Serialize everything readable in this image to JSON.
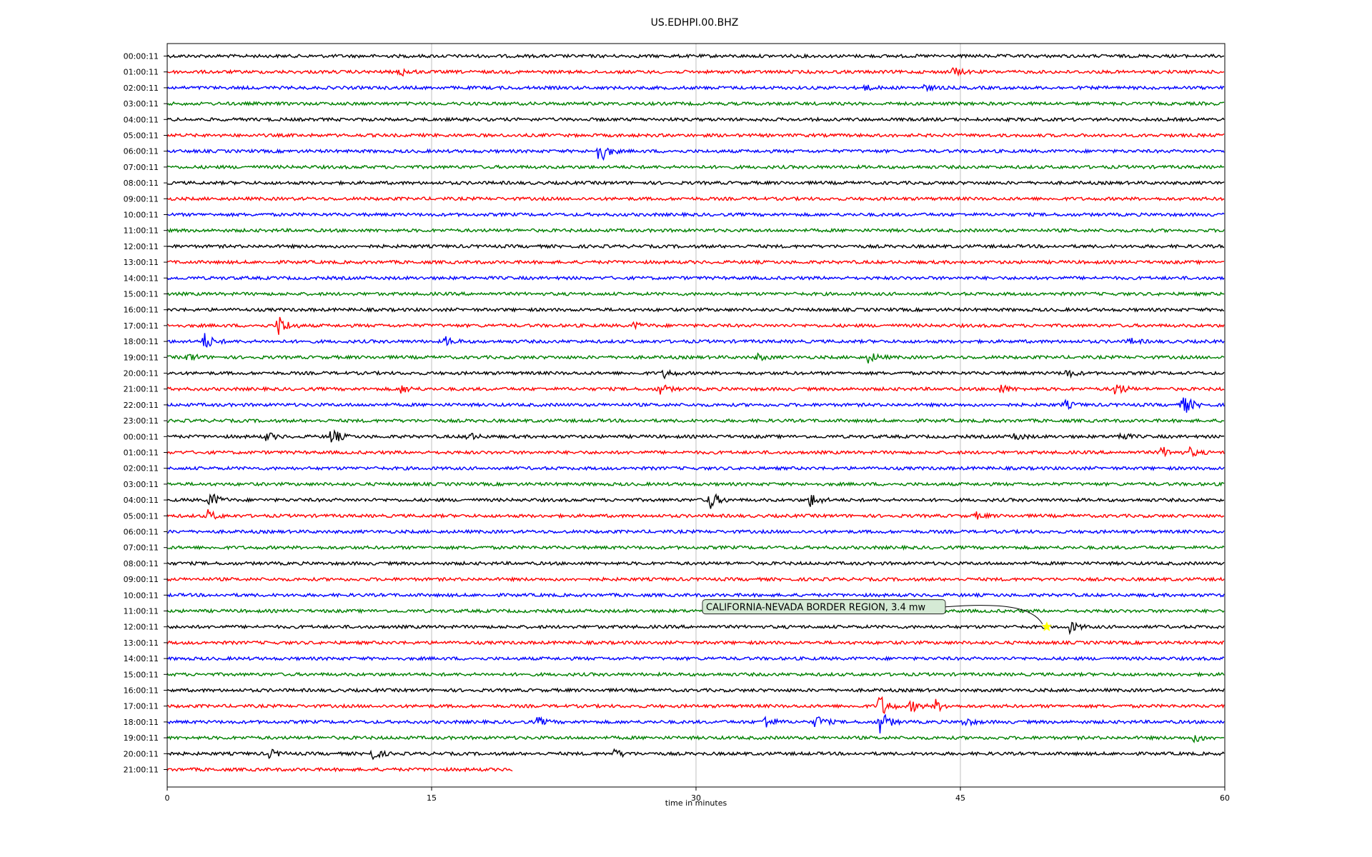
{
  "chart_data": {
    "type": "line",
    "title": "US.EDHPI.00.BHZ",
    "xlabel": "time in minutes",
    "ylabel": "",
    "xlim": [
      0,
      60
    ],
    "xticks": [
      0,
      15,
      30,
      45,
      60
    ],
    "xtick_labels": [
      "0",
      "15",
      "30",
      "45",
      "60"
    ],
    "grid": "vertical",
    "trace_colors": [
      "#000000",
      "#ff0000",
      "#0000ff",
      "#008000"
    ],
    "row_labels": [
      "00:00:11",
      "01:00:11",
      "02:00:11",
      "03:00:11",
      "04:00:11",
      "05:00:11",
      "06:00:11",
      "07:00:11",
      "08:00:11",
      "09:00:11",
      "10:00:11",
      "11:00:11",
      "12:00:11",
      "13:00:11",
      "14:00:11",
      "15:00:11",
      "16:00:11",
      "17:00:11",
      "18:00:11",
      "19:00:11",
      "20:00:11",
      "21:00:11",
      "22:00:11",
      "23:00:11",
      "00:00:11",
      "01:00:11",
      "02:00:11",
      "03:00:11",
      "04:00:11",
      "05:00:11",
      "06:00:11",
      "07:00:11",
      "08:00:11",
      "09:00:11",
      "10:00:11",
      "11:00:11",
      "12:00:11",
      "13:00:11",
      "14:00:11",
      "15:00:11",
      "16:00:11",
      "17:00:11",
      "18:00:11",
      "19:00:11",
      "20:00:11",
      "21:00:11"
    ],
    "last_row_end_minute": 19.6,
    "events": [
      {
        "row": 1,
        "minute": 13.2,
        "amp": 0.3
      },
      {
        "row": 1,
        "minute": 44.6,
        "amp": 0.3
      },
      {
        "row": 2,
        "minute": 39.5,
        "amp": 0.2
      },
      {
        "row": 2,
        "minute": 43.0,
        "amp": 0.2
      },
      {
        "row": 6,
        "minute": 24.5,
        "amp": 0.9
      },
      {
        "row": 17,
        "minute": 6.3,
        "amp": 0.8
      },
      {
        "row": 17,
        "minute": 26.5,
        "amp": 0.2
      },
      {
        "row": 18,
        "minute": 2.1,
        "amp": 0.6
      },
      {
        "row": 18,
        "minute": 15.8,
        "amp": 0.3
      },
      {
        "row": 18,
        "minute": 54.6,
        "amp": 0.2
      },
      {
        "row": 19,
        "minute": 1.2,
        "amp": 0.3
      },
      {
        "row": 19,
        "minute": 33.5,
        "amp": 0.2
      },
      {
        "row": 19,
        "minute": 39.8,
        "amp": 0.4
      },
      {
        "row": 20,
        "minute": 28.2,
        "amp": 0.3
      },
      {
        "row": 20,
        "minute": 51.0,
        "amp": 0.3
      },
      {
        "row": 21,
        "minute": 13.3,
        "amp": 0.3
      },
      {
        "row": 21,
        "minute": 27.9,
        "amp": 0.4
      },
      {
        "row": 21,
        "minute": 47.3,
        "amp": 0.3
      },
      {
        "row": 21,
        "minute": 53.8,
        "amp": 0.5
      },
      {
        "row": 22,
        "minute": 50.9,
        "amp": 0.3
      },
      {
        "row": 22,
        "minute": 57.6,
        "amp": 0.8
      },
      {
        "row": 24,
        "minute": 5.6,
        "amp": 0.3
      },
      {
        "row": 24,
        "minute": 9.3,
        "amp": 0.6
      },
      {
        "row": 24,
        "minute": 17.0,
        "amp": 0.3
      },
      {
        "row": 24,
        "minute": 48.0,
        "amp": 0.3
      },
      {
        "row": 24,
        "minute": 54.0,
        "amp": 0.3
      },
      {
        "row": 25,
        "minute": 56.4,
        "amp": 0.4
      },
      {
        "row": 25,
        "minute": 58.0,
        "amp": 0.3
      },
      {
        "row": 28,
        "minute": 2.4,
        "amp": 0.6
      },
      {
        "row": 28,
        "minute": 30.7,
        "amp": 0.8
      },
      {
        "row": 28,
        "minute": 36.5,
        "amp": 0.5
      },
      {
        "row": 29,
        "minute": 2.3,
        "amp": 0.4
      },
      {
        "row": 29,
        "minute": 45.9,
        "amp": 0.2
      },
      {
        "row": 36,
        "minute": 51.2,
        "amp": 0.4
      },
      {
        "row": 41,
        "minute": 40.4,
        "amp": 0.9
      },
      {
        "row": 41,
        "minute": 42.2,
        "amp": 0.4
      },
      {
        "row": 41,
        "minute": 43.6,
        "amp": 0.4
      },
      {
        "row": 42,
        "minute": 21.0,
        "amp": 0.3
      },
      {
        "row": 42,
        "minute": 33.9,
        "amp": 0.5
      },
      {
        "row": 42,
        "minute": 36.8,
        "amp": 0.5
      },
      {
        "row": 42,
        "minute": 40.4,
        "amp": 0.9
      },
      {
        "row": 42,
        "minute": 45.2,
        "amp": 0.3
      },
      {
        "row": 43,
        "minute": 58.3,
        "amp": 0.3
      },
      {
        "row": 44,
        "minute": 5.8,
        "amp": 0.3
      },
      {
        "row": 44,
        "minute": 11.6,
        "amp": 0.4
      },
      {
        "row": 44,
        "minute": 25.4,
        "amp": 0.3
      }
    ],
    "annotation": {
      "text": "CALIFORNIA-NEVADA BORDER REGION, 3.4 mw",
      "row": 36,
      "minute": 49.9,
      "marker": "star",
      "marker_color": "#ffff00",
      "box_color": "#d5ead5"
    }
  }
}
